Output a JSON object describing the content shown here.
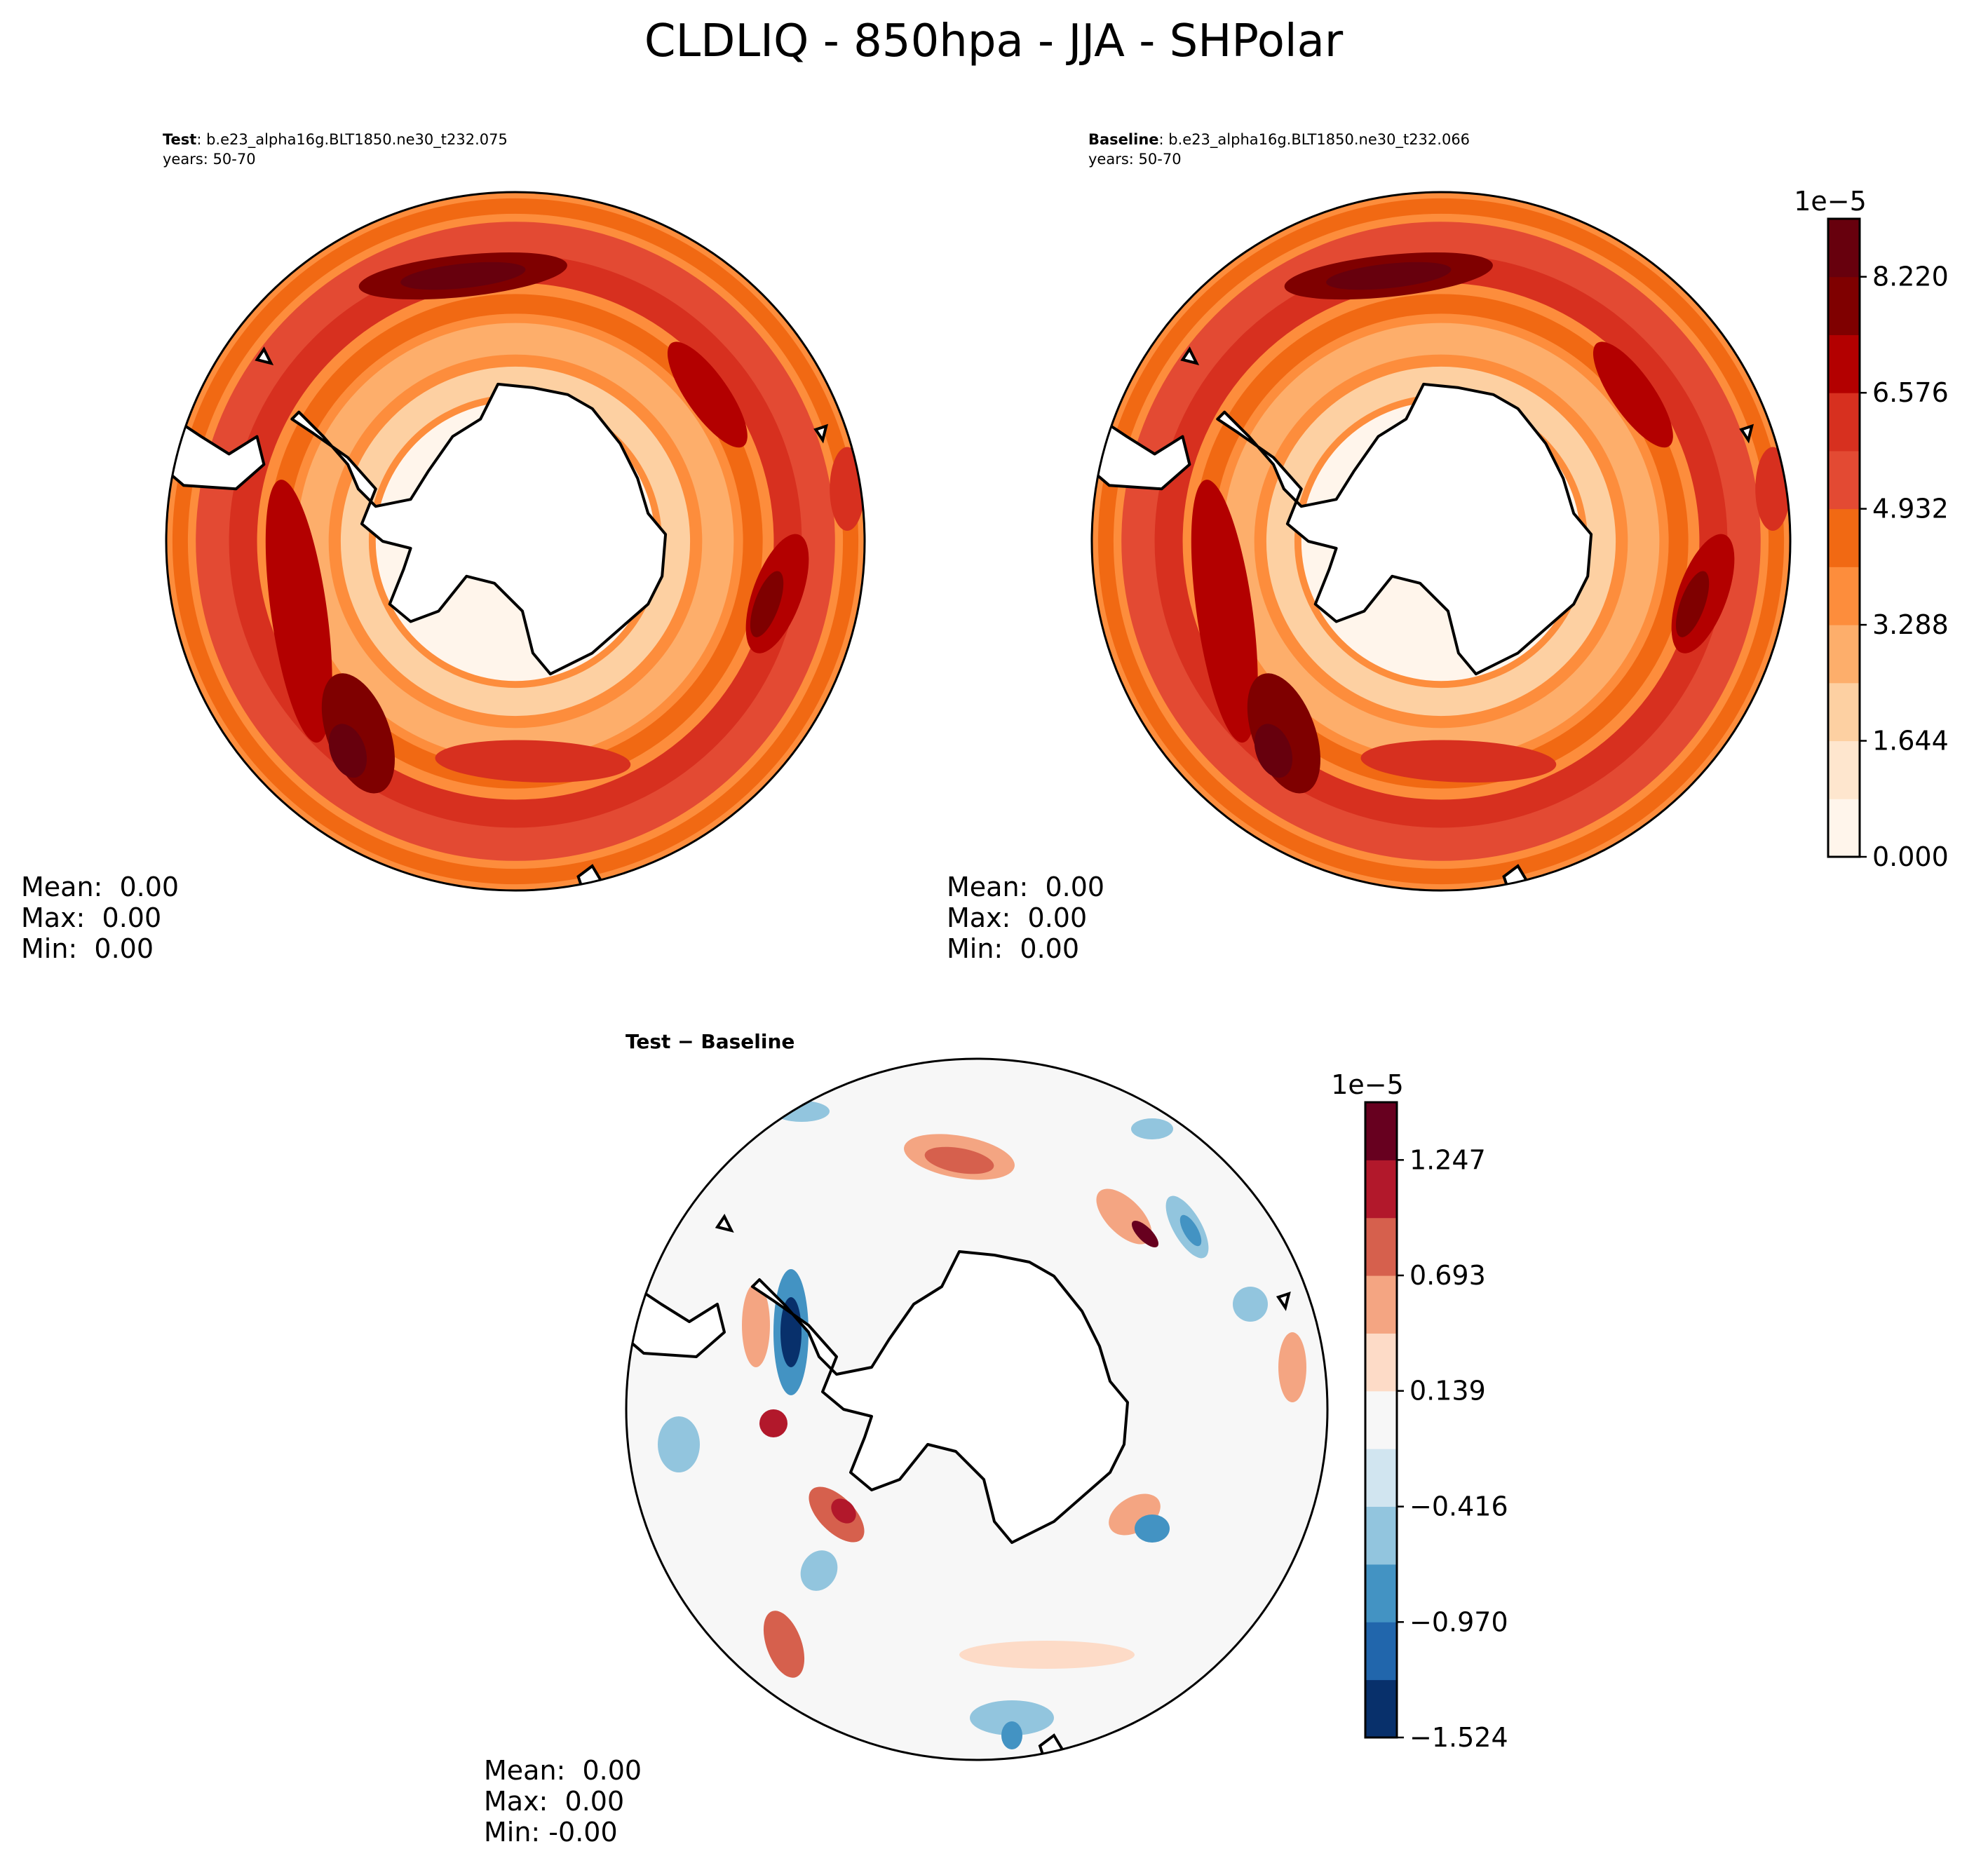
{
  "title": "CLDLIQ - 850hpa - JJA - SHPolar",
  "panels": {
    "test": {
      "label_bold": "Test",
      "label_rest": ": b.e23_alpha16g.BLT1850.ne30_t232.075",
      "years": "years: 50-70",
      "stats": [
        "Mean:  0.00",
        "Max:  0.00",
        "Min:  0.00"
      ]
    },
    "baseline": {
      "label_bold": "Baseline",
      "label_rest": ": b.e23_alpha16g.BLT1850.ne30_t232.066",
      "years": "years: 50-70",
      "stats": [
        "Mean:  0.00",
        "Max:  0.00",
        "Min:  0.00"
      ]
    },
    "diff": {
      "label": "Test − Baseline",
      "stats": [
        "Mean:  0.00",
        "Max:  0.00",
        "Min: -0.00"
      ]
    }
  },
  "colors": {
    "main_levels": [
      "#fff5eb",
      "#fee6ce",
      "#fdd0a2",
      "#fdae6b",
      "#fd8d3c",
      "#f16913",
      "#e34a33",
      "#d7301f",
      "#b30000",
      "#7f0000",
      "#67000d"
    ],
    "diff_levels": [
      "#08306b",
      "#2166ac",
      "#4393c3",
      "#92c5de",
      "#d1e5f0",
      "#f7f7f7",
      "#fddbc7",
      "#f4a582",
      "#d6604d",
      "#b2182b",
      "#67001f"
    ],
    "land": "#ffffff",
    "coast": "#000000"
  },
  "chart_data": [
    {
      "type": "heatmap",
      "name": "Test",
      "projection": "south-polar-stereographic",
      "colorbar": {
        "exponent_label": "1e−5",
        "ticks": [
          "0.000",
          "1.644",
          "3.288",
          "4.932",
          "6.576",
          "8.220"
        ],
        "tick_values": [
          0.0,
          1.644,
          3.288,
          4.932,
          6.576,
          8.22
        ],
        "range": [
          0.0,
          9.042
        ],
        "levels": 11
      },
      "ring_peak_value": 9.0
    },
    {
      "type": "heatmap",
      "name": "Baseline",
      "projection": "south-polar-stereographic",
      "ring_peak_value": 9.0
    },
    {
      "type": "heatmap",
      "name": "Test - Baseline",
      "projection": "south-polar-stereographic",
      "colorbar": {
        "exponent_label": "1e−5",
        "ticks": [
          "−1.524",
          "−0.970",
          "−0.416",
          "0.139",
          "0.693",
          "1.247"
        ],
        "tick_values": [
          -1.524,
          -0.97,
          -0.416,
          0.139,
          0.693,
          1.247
        ],
        "range": [
          -1.524,
          1.524
        ],
        "levels": 11
      }
    }
  ]
}
